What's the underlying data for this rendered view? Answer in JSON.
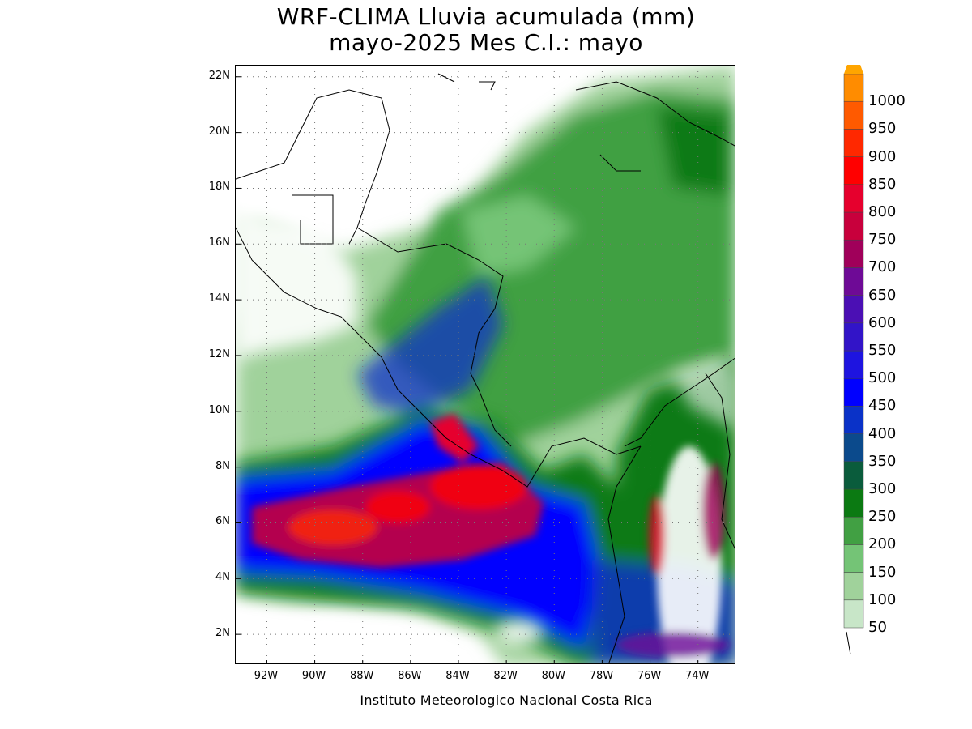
{
  "title": {
    "line1": "WRF-CLIMA Lluvia acumulada (mm)",
    "line2": "mayo-2025 Mes C.I.: mayo"
  },
  "credit": "Instituto Meteorologico Nacional Costa Rica",
  "map": {
    "lon_range": [
      -93.3,
      -72.4
    ],
    "lat_range": [
      0.9,
      22.4
    ],
    "lat_ticks": [
      {
        "value": 22,
        "label": "22N"
      },
      {
        "value": 20,
        "label": "20N"
      },
      {
        "value": 18,
        "label": "18N"
      },
      {
        "value": 16,
        "label": "16N"
      },
      {
        "value": 14,
        "label": "14N"
      },
      {
        "value": 12,
        "label": "12N"
      },
      {
        "value": 10,
        "label": "10N"
      },
      {
        "value": 8,
        "label": "8N"
      },
      {
        "value": 6,
        "label": "6N"
      },
      {
        "value": 4,
        "label": "4N"
      },
      {
        "value": 2,
        "label": "2N"
      }
    ],
    "lon_ticks": [
      {
        "value": -92,
        "label": "92W"
      },
      {
        "value": -90,
        "label": "90W"
      },
      {
        "value": -88,
        "label": "88W"
      },
      {
        "value": -86,
        "label": "86W"
      },
      {
        "value": -84,
        "label": "84W"
      },
      {
        "value": -82,
        "label": "82W"
      },
      {
        "value": -80,
        "label": "80W"
      },
      {
        "value": -78,
        "label": "78W"
      },
      {
        "value": -76,
        "label": "76W"
      },
      {
        "value": -74,
        "label": "74W"
      }
    ],
    "grid": "dotted"
  },
  "colorbar": {
    "levels": [
      {
        "value": "50",
        "color": "#c8e6c8"
      },
      {
        "value": "100",
        "color": "#a0d29b"
      },
      {
        "value": "150",
        "color": "#74c476"
      },
      {
        "value": "200",
        "color": "#41a043"
      },
      {
        "value": "250",
        "color": "#0b7a12"
      },
      {
        "value": "300",
        "color": "#0a5c3c"
      },
      {
        "value": "350",
        "color": "#0b4a8c"
      },
      {
        "value": "400",
        "color": "#0a32c8"
      },
      {
        "value": "450",
        "color": "#0000ff"
      },
      {
        "value": "500",
        "color": "#1e14e0"
      },
      {
        "value": "550",
        "color": "#3214c8"
      },
      {
        "value": "600",
        "color": "#4b0fb4"
      },
      {
        "value": "650",
        "color": "#6e0a96"
      },
      {
        "value": "700",
        "color": "#a0005a"
      },
      {
        "value": "750",
        "color": "#c8003c"
      },
      {
        "value": "800",
        "color": "#e6002d"
      },
      {
        "value": "850",
        "color": "#ff0000"
      },
      {
        "value": "900",
        "color": "#ff2800"
      },
      {
        "value": "950",
        "color": "#ff5a00"
      },
      {
        "value": "1000",
        "color": "#ff8c00"
      }
    ],
    "over_color": "#ffa500"
  }
}
